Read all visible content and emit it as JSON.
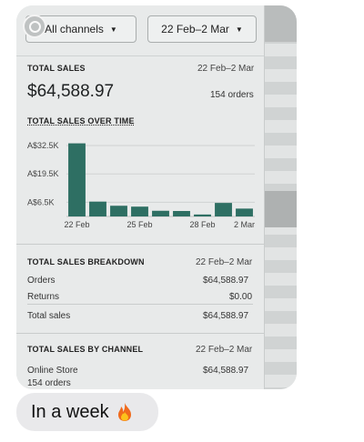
{
  "toolbar": {
    "channel_label": "All channels",
    "date_label": "22 Feb–2 Mar"
  },
  "total_sales": {
    "label": "TOTAL SALES",
    "date": "22 Feb–2 Mar",
    "amount": "$64,588.97",
    "orders": "154 orders"
  },
  "chart_data": {
    "type": "bar",
    "title": "TOTAL SALES OVER TIME",
    "y_ticks": [
      "A$32.5K",
      "A$19.5K",
      "A$6.5K"
    ],
    "y_tick_values": [
      32500,
      19500,
      6500
    ],
    "x_tick_labels": [
      "22 Feb",
      "25 Feb",
      "28 Feb",
      "2 Mar"
    ],
    "categories": [
      "22 Feb",
      "23 Feb",
      "24 Feb",
      "25 Feb",
      "26 Feb",
      "27 Feb",
      "28 Feb",
      "1 Mar",
      "2 Mar"
    ],
    "values": [
      33500,
      6800,
      4900,
      4500,
      2600,
      2500,
      900,
      6200,
      3600
    ],
    "ylim": [
      0,
      35000
    ],
    "grid": true,
    "bar_color": "#2e6f63"
  },
  "breakdown": {
    "label": "TOTAL SALES BREAKDOWN",
    "date": "22 Feb–2 Mar",
    "rows": [
      {
        "name": "Orders",
        "value": "$64,588.97"
      },
      {
        "name": "Returns",
        "value": "$0.00"
      },
      {
        "name": "Total sales",
        "value": "$64,588.97"
      }
    ]
  },
  "by_channel": {
    "label": "TOTAL SALES BY CHANNEL",
    "date": "22 Feb–2 Mar",
    "channel": "Online Store",
    "value": "$64,588.97",
    "orders": "154 orders"
  },
  "message": {
    "text": "In a week",
    "emoji_icon": "fire-icon"
  },
  "colors": {
    "bar": "#2e6f63",
    "bubble": "#e9e9eb"
  }
}
